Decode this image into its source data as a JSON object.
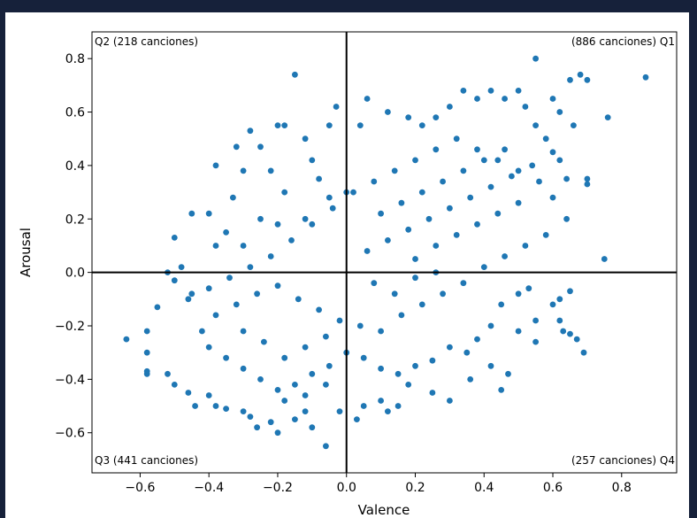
{
  "colors": {
    "frame": "#16213a",
    "panel": "#ffffff",
    "points": "#1f77b4",
    "axes": "#000000"
  },
  "chart_data": {
    "type": "scatter",
    "title": "",
    "xlabel": "Valence",
    "ylabel": "Arousal",
    "xlim": [
      -0.74,
      0.96
    ],
    "ylim": [
      -0.75,
      0.9
    ],
    "xticks": [
      -0.6,
      -0.4,
      -0.2,
      0.0,
      0.2,
      0.4,
      0.6,
      0.8
    ],
    "xtick_labels": [
      "−0.6",
      "−0.4",
      "−0.2",
      "0.0",
      "0.2",
      "0.4",
      "0.6",
      "0.8"
    ],
    "yticks": [
      -0.6,
      -0.4,
      -0.2,
      0.0,
      0.2,
      0.4,
      0.6,
      0.8
    ],
    "ytick_labels": [
      "−0.6",
      "−0.4",
      "−0.2",
      "0.0",
      "0.2",
      "0.4",
      "0.6",
      "0.8"
    ],
    "grid": false,
    "reference_lines": {
      "x": 0,
      "y": 0
    },
    "quadrant_labels": {
      "q1": "(886 canciones) Q1",
      "q2": "Q2 (218 canciones)",
      "q3": "Q3 (441 canciones)",
      "q4": "(257 canciones) Q4"
    },
    "series": [
      {
        "color": "#1f77b4",
        "points": [
          [
            0.87,
            0.73
          ],
          [
            0.55,
            0.8
          ],
          [
            0.76,
            0.58
          ],
          [
            0.7,
            0.72
          ],
          [
            0.68,
            0.74
          ],
          [
            0.65,
            0.72
          ],
          [
            0.6,
            0.65
          ],
          [
            0.62,
            0.6
          ],
          [
            0.66,
            0.55
          ],
          [
            0.7,
            0.35
          ],
          [
            0.7,
            0.33
          ],
          [
            0.75,
            0.05
          ],
          [
            0.64,
            0.35
          ],
          [
            0.62,
            0.42
          ],
          [
            0.6,
            0.45
          ],
          [
            0.58,
            0.5
          ],
          [
            0.55,
            0.55
          ],
          [
            0.52,
            0.62
          ],
          [
            0.5,
            0.68
          ],
          [
            0.46,
            0.65
          ],
          [
            0.42,
            0.68
          ],
          [
            0.38,
            0.65
          ],
          [
            0.34,
            0.68
          ],
          [
            0.3,
            0.62
          ],
          [
            0.26,
            0.58
          ],
          [
            0.22,
            0.55
          ],
          [
            0.18,
            0.58
          ],
          [
            0.12,
            0.6
          ],
          [
            0.06,
            0.65
          ],
          [
            0.04,
            0.55
          ],
          [
            -0.15,
            0.74
          ],
          [
            -0.03,
            0.62
          ],
          [
            -0.28,
            0.53
          ],
          [
            -0.2,
            0.55
          ],
          [
            -0.18,
            0.55
          ],
          [
            -0.32,
            0.47
          ],
          [
            -0.25,
            0.47
          ],
          [
            -0.12,
            0.5
          ],
          [
            -0.05,
            0.55
          ],
          [
            -0.38,
            0.4
          ],
          [
            -0.3,
            0.38
          ],
          [
            -0.22,
            0.38
          ],
          [
            -0.1,
            0.42
          ],
          [
            -0.33,
            0.28
          ],
          [
            -0.4,
            0.22
          ],
          [
            -0.45,
            0.22
          ],
          [
            -0.5,
            0.13
          ],
          [
            -0.38,
            0.1
          ],
          [
            -0.3,
            0.1
          ],
          [
            -0.2,
            0.18
          ],
          [
            -0.12,
            0.2
          ],
          [
            -0.05,
            0.28
          ],
          [
            0.0,
            0.3
          ],
          [
            -0.08,
            0.35
          ],
          [
            -0.18,
            0.3
          ],
          [
            -0.25,
            0.2
          ],
          [
            -0.35,
            0.15
          ],
          [
            -0.48,
            0.02
          ],
          [
            -0.52,
            0.0
          ],
          [
            -0.5,
            -0.03
          ],
          [
            -0.45,
            -0.08
          ],
          [
            -0.55,
            -0.13
          ],
          [
            -0.58,
            -0.22
          ],
          [
            -0.64,
            -0.25
          ],
          [
            -0.58,
            -0.3
          ],
          [
            -0.58,
            -0.37
          ],
          [
            -0.58,
            -0.38
          ],
          [
            -0.52,
            -0.38
          ],
          [
            -0.5,
            -0.42
          ],
          [
            -0.46,
            -0.45
          ],
          [
            -0.44,
            -0.5
          ],
          [
            -0.4,
            -0.46
          ],
          [
            -0.38,
            -0.5
          ],
          [
            -0.35,
            -0.51
          ],
          [
            -0.3,
            -0.52
          ],
          [
            -0.28,
            -0.54
          ],
          [
            -0.26,
            -0.58
          ],
          [
            -0.22,
            -0.56
          ],
          [
            -0.2,
            -0.6
          ],
          [
            -0.15,
            -0.55
          ],
          [
            -0.12,
            -0.52
          ],
          [
            -0.1,
            -0.58
          ],
          [
            -0.06,
            -0.65
          ],
          [
            -0.02,
            -0.52
          ],
          [
            0.03,
            -0.55
          ],
          [
            0.05,
            -0.5
          ],
          [
            0.1,
            -0.48
          ],
          [
            0.12,
            -0.52
          ],
          [
            0.15,
            -0.5
          ],
          [
            0.18,
            -0.42
          ],
          [
            0.25,
            -0.45
          ],
          [
            0.3,
            -0.48
          ],
          [
            0.36,
            -0.4
          ],
          [
            0.42,
            -0.35
          ],
          [
            0.45,
            -0.44
          ],
          [
            0.47,
            -0.38
          ],
          [
            0.5,
            -0.22
          ],
          [
            0.55,
            -0.18
          ],
          [
            0.55,
            -0.26
          ],
          [
            0.6,
            -0.12
          ],
          [
            0.62,
            -0.18
          ],
          [
            0.62,
            -0.1
          ],
          [
            0.65,
            -0.07
          ],
          [
            0.63,
            -0.22
          ],
          [
            0.65,
            -0.23
          ],
          [
            0.67,
            -0.25
          ],
          [
            0.69,
            -0.3
          ],
          [
            0.53,
            -0.06
          ],
          [
            0.5,
            -0.08
          ],
          [
            0.45,
            -0.12
          ],
          [
            0.42,
            -0.2
          ],
          [
            0.38,
            -0.25
          ],
          [
            0.35,
            -0.3
          ],
          [
            0.3,
            -0.28
          ],
          [
            0.25,
            -0.33
          ],
          [
            0.2,
            -0.35
          ],
          [
            0.15,
            -0.38
          ],
          [
            0.1,
            -0.36
          ],
          [
            0.05,
            -0.32
          ],
          [
            0.0,
            -0.3
          ],
          [
            -0.05,
            -0.35
          ],
          [
            -0.1,
            -0.38
          ],
          [
            -0.15,
            -0.42
          ],
          [
            -0.2,
            -0.44
          ],
          [
            -0.25,
            -0.4
          ],
          [
            -0.3,
            -0.36
          ],
          [
            -0.35,
            -0.32
          ],
          [
            -0.4,
            -0.28
          ],
          [
            -0.42,
            -0.22
          ],
          [
            -0.38,
            -0.16
          ],
          [
            -0.32,
            -0.12
          ],
          [
            -0.26,
            -0.08
          ],
          [
            -0.2,
            -0.05
          ],
          [
            -0.14,
            -0.1
          ],
          [
            -0.08,
            -0.14
          ],
          [
            -0.02,
            -0.18
          ],
          [
            0.04,
            -0.2
          ],
          [
            0.1,
            -0.22
          ],
          [
            0.16,
            -0.16
          ],
          [
            0.22,
            -0.12
          ],
          [
            0.28,
            -0.08
          ],
          [
            0.34,
            -0.04
          ],
          [
            0.4,
            0.02
          ],
          [
            0.46,
            0.06
          ],
          [
            0.52,
            0.1
          ],
          [
            0.58,
            0.14
          ],
          [
            0.64,
            0.2
          ],
          [
            0.6,
            0.28
          ],
          [
            0.56,
            0.34
          ],
          [
            0.5,
            0.38
          ],
          [
            0.44,
            0.42
          ],
          [
            0.38,
            0.46
          ],
          [
            0.32,
            0.5
          ],
          [
            0.26,
            0.46
          ],
          [
            0.2,
            0.42
          ],
          [
            0.14,
            0.38
          ],
          [
            0.08,
            0.34
          ],
          [
            0.02,
            0.3
          ],
          [
            -0.04,
            0.24
          ],
          [
            -0.1,
            0.18
          ],
          [
            -0.16,
            0.12
          ],
          [
            -0.22,
            0.06
          ],
          [
            -0.28,
            0.02
          ],
          [
            -0.34,
            -0.02
          ],
          [
            -0.4,
            -0.06
          ],
          [
            -0.46,
            -0.1
          ],
          [
            0.06,
            0.08
          ],
          [
            0.12,
            0.12
          ],
          [
            0.18,
            0.16
          ],
          [
            0.24,
            0.2
          ],
          [
            0.3,
            0.24
          ],
          [
            0.36,
            0.28
          ],
          [
            0.42,
            0.32
          ],
          [
            0.48,
            0.36
          ],
          [
            0.54,
            0.4
          ],
          [
            0.1,
            0.22
          ],
          [
            0.16,
            0.26
          ],
          [
            0.22,
            0.3
          ],
          [
            0.28,
            0.34
          ],
          [
            0.34,
            0.38
          ],
          [
            0.4,
            0.42
          ],
          [
            0.46,
            0.46
          ],
          [
            0.2,
            0.05
          ],
          [
            0.26,
            0.1
          ],
          [
            0.32,
            0.14
          ],
          [
            0.38,
            0.18
          ],
          [
            0.44,
            0.22
          ],
          [
            0.5,
            0.26
          ],
          [
            0.08,
            -0.04
          ],
          [
            0.14,
            -0.08
          ],
          [
            0.2,
            -0.02
          ],
          [
            0.26,
            0.0
          ],
          [
            -0.06,
            -0.24
          ],
          [
            -0.12,
            -0.28
          ],
          [
            -0.18,
            -0.32
          ],
          [
            -0.24,
            -0.26
          ],
          [
            -0.3,
            -0.22
          ],
          [
            -0.06,
            -0.42
          ],
          [
            -0.12,
            -0.46
          ],
          [
            -0.18,
            -0.48
          ]
        ]
      }
    ]
  }
}
